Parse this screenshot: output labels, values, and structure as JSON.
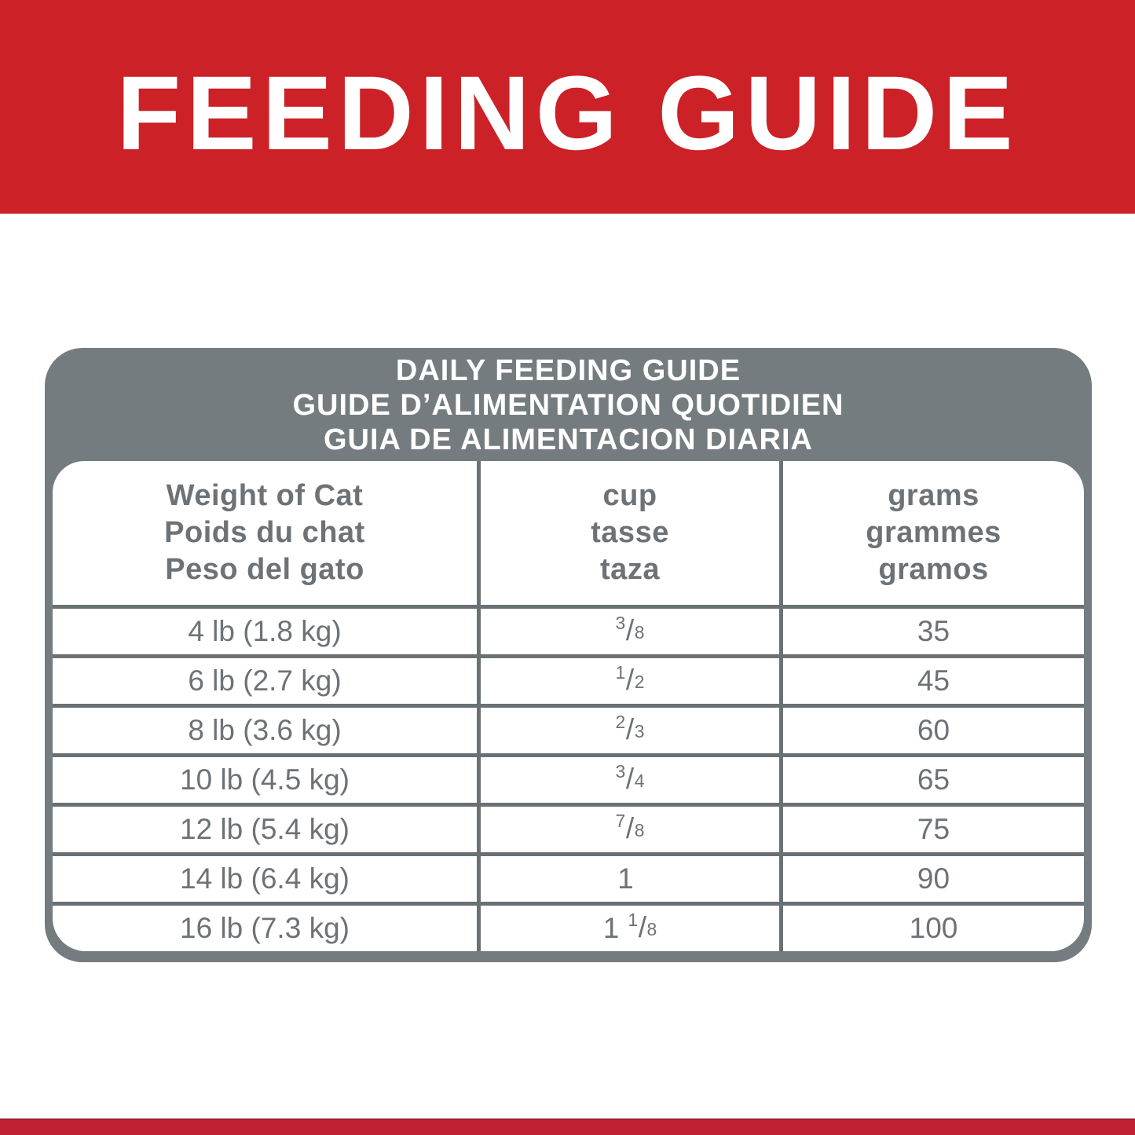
{
  "banner": {
    "title": "FEEDING GUIDE"
  },
  "table": {
    "title_lines": [
      "DAILY FEEDING GUIDE",
      "GUIDE D’ALIMENTATION QUOTIDIEN",
      "GUIA DE ALIMENTACION DIARIA"
    ],
    "columns": [
      {
        "lines": [
          "Weight of Cat",
          "Poids du chat",
          "Peso del gato"
        ]
      },
      {
        "lines": [
          "cup",
          "tasse",
          "taza"
        ]
      },
      {
        "lines": [
          "grams",
          "grammes",
          "gramos"
        ]
      }
    ],
    "rows": [
      {
        "weight": "4 lb (1.8 kg)",
        "cup": {
          "whole": "",
          "num": "3",
          "den": "8"
        },
        "grams": "35"
      },
      {
        "weight": "6 lb (2.7 kg)",
        "cup": {
          "whole": "",
          "num": "1",
          "den": "2"
        },
        "grams": "45"
      },
      {
        "weight": "8 lb (3.6 kg)",
        "cup": {
          "whole": "",
          "num": "2",
          "den": "3"
        },
        "grams": "60"
      },
      {
        "weight": "10 lb (4.5 kg)",
        "cup": {
          "whole": "",
          "num": "3",
          "den": "4"
        },
        "grams": "65"
      },
      {
        "weight": "12 lb (5.4 kg)",
        "cup": {
          "whole": "",
          "num": "7",
          "den": "8"
        },
        "grams": "75"
      },
      {
        "weight": "14 lb (6.4 kg)",
        "cup": {
          "whole": "1",
          "num": "",
          "den": ""
        },
        "grams": "90"
      },
      {
        "weight": "16 lb (7.3 kg)",
        "cup": {
          "whole": "1",
          "num": "1",
          "den": "8"
        },
        "grams": "100"
      }
    ]
  },
  "colors": {
    "banner_red": "#cb2127",
    "footer_red": "#c22033",
    "table_gray": "#757c80",
    "divider_gray": "#6a7175",
    "text_gray": "#6d7276"
  }
}
